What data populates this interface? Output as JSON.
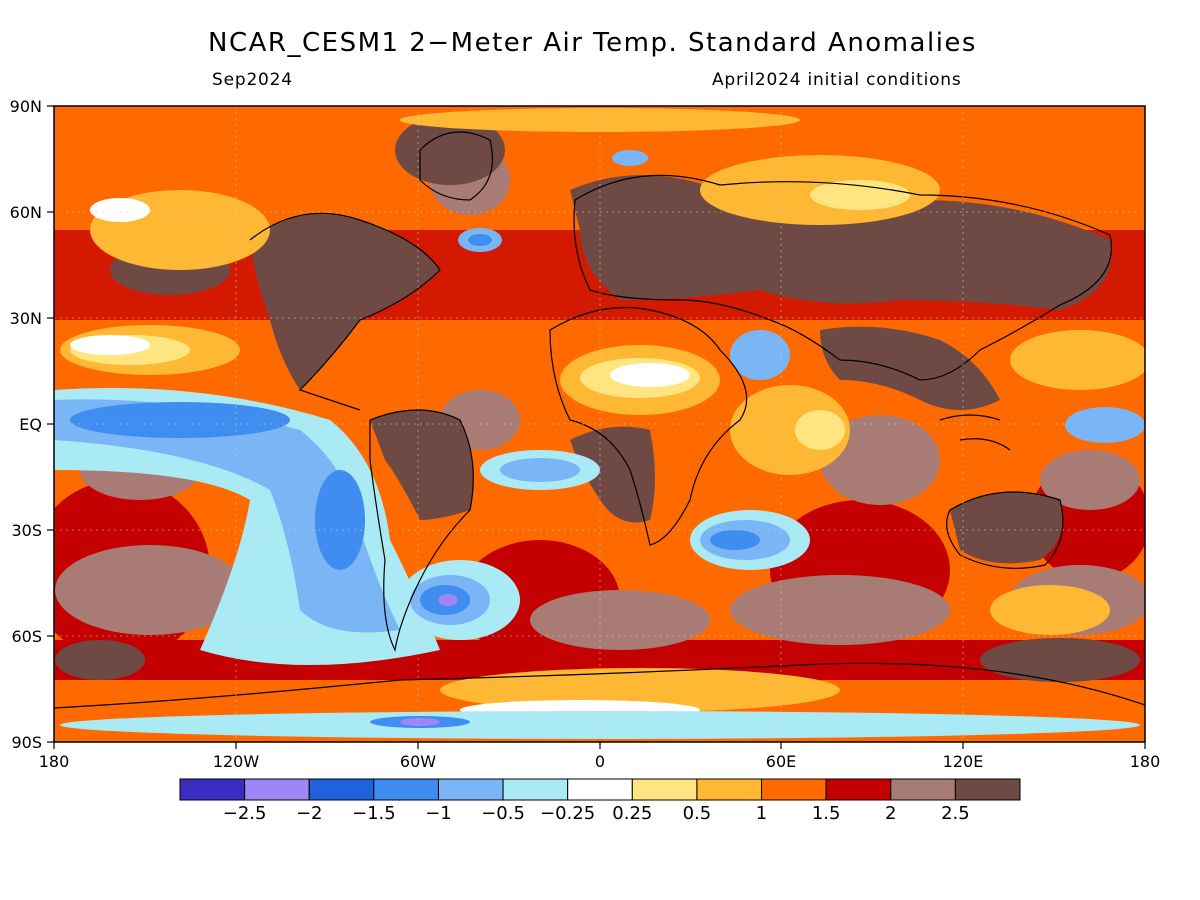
{
  "title": "NCAR_CESM1 2−Meter Air Temp. Standard Anomalies",
  "subtitle_left": "Sep2024",
  "subtitle_right": "April2024 initial conditions",
  "lat_labels": [
    "90N",
    "60N",
    "30N",
    "EQ",
    "30S",
    "60S",
    "90S"
  ],
  "lon_labels": [
    "180",
    "120W",
    "60W",
    "0",
    "60E",
    "120E",
    "180"
  ],
  "colorbar": {
    "labels": [
      "−2.5",
      "−2",
      "−1.5",
      "−1",
      "−0.5",
      "−0.25",
      "0.25",
      "0.5",
      "1",
      "1.5",
      "2",
      "2.5"
    ],
    "colors": [
      "#3b2dbf",
      "#9f86f5",
      "#1f62d9",
      "#3f8df0",
      "#7ab6f5",
      "#aaeaf5",
      "#ffffff",
      "#ffe580",
      "#ffb833",
      "#ff6a00",
      "#c40000",
      "#a87c75",
      "#6f4a45"
    ]
  }
}
